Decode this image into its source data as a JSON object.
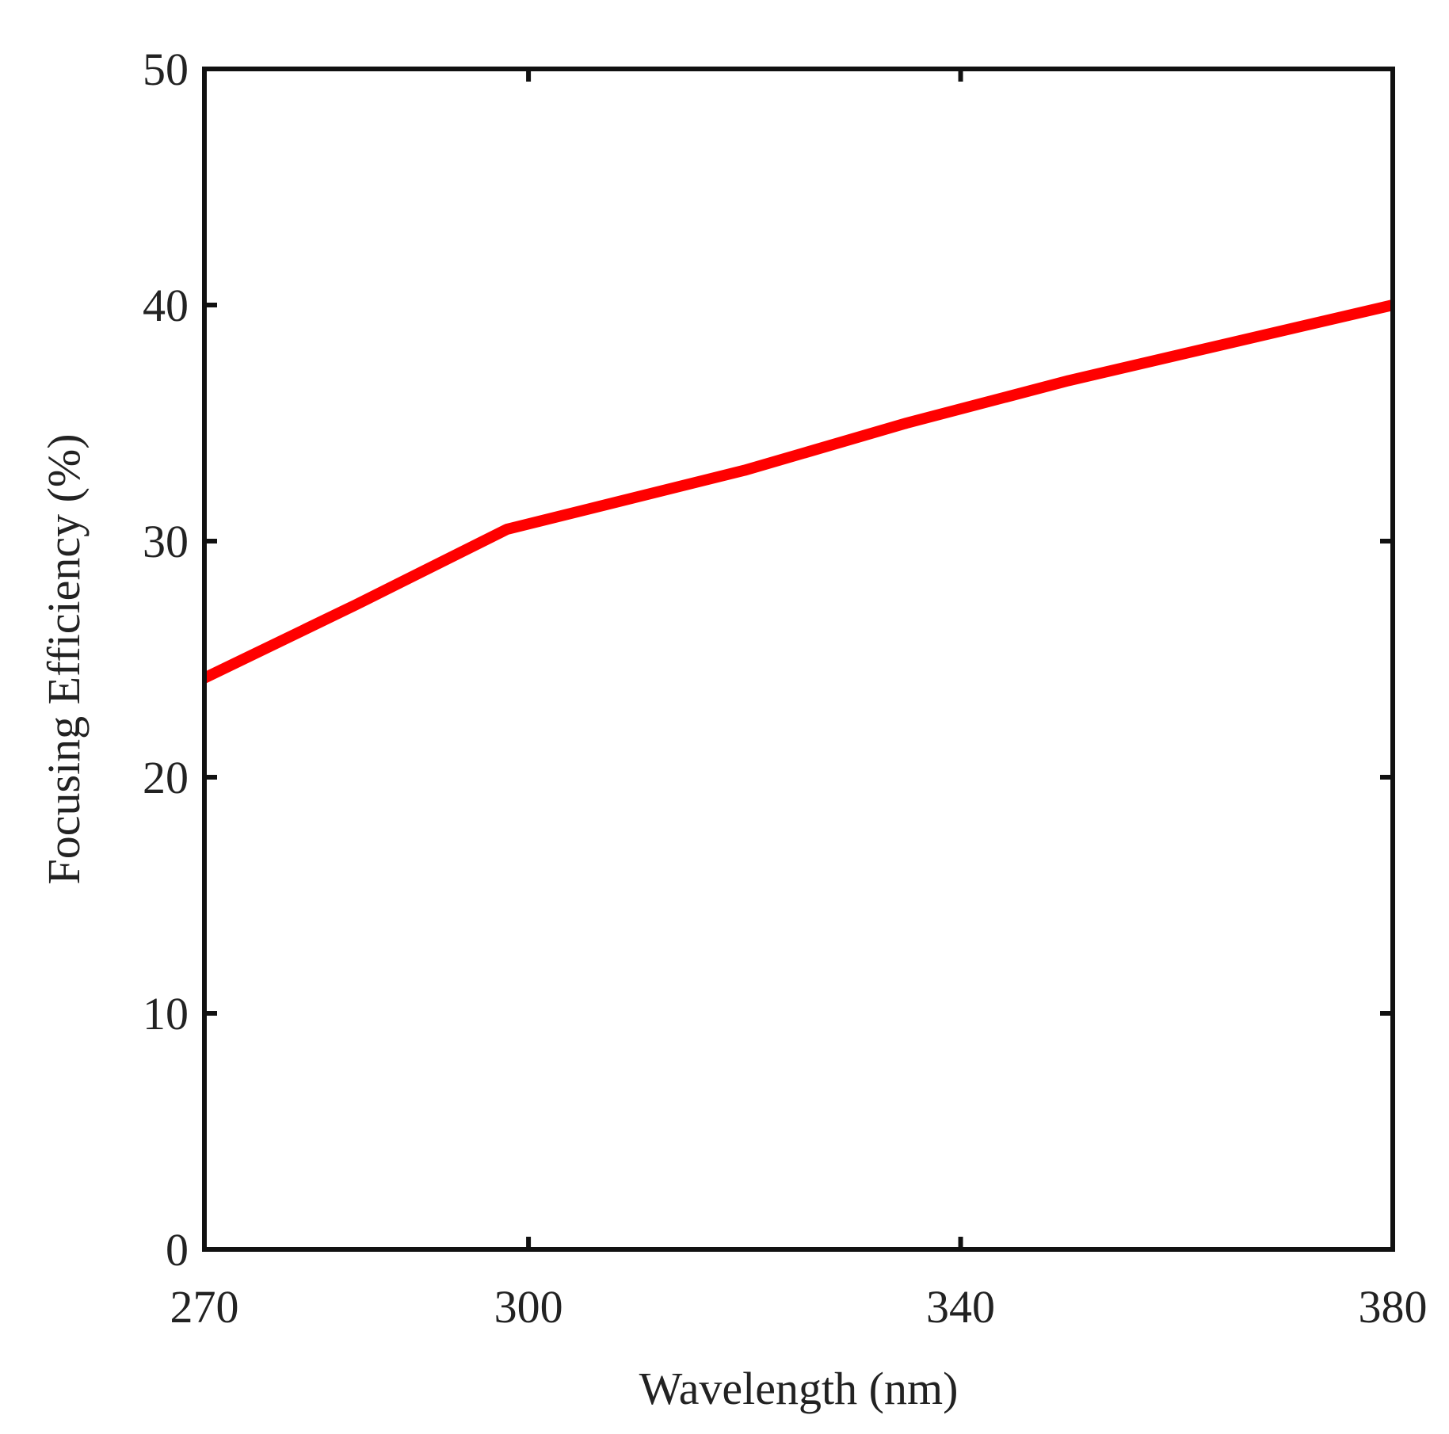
{
  "chart_data": {
    "type": "line",
    "title": "",
    "xlabel": "Wavelength (nm)",
    "ylabel": "Focusing Efficiency (%)",
    "xlim": [
      270,
      380
    ],
    "ylim": [
      0,
      50
    ],
    "xticks": [
      270,
      300,
      340,
      380
    ],
    "yticks": [
      0,
      10,
      20,
      30,
      40,
      50
    ],
    "grid": false,
    "series": [
      {
        "color": "#ff0000",
        "x": [
          270,
          284,
          298,
          320,
          335,
          350,
          365,
          380
        ],
        "y": [
          24.2,
          27.3,
          30.5,
          33.0,
          35.0,
          36.8,
          38.4,
          40.0
        ]
      }
    ]
  }
}
